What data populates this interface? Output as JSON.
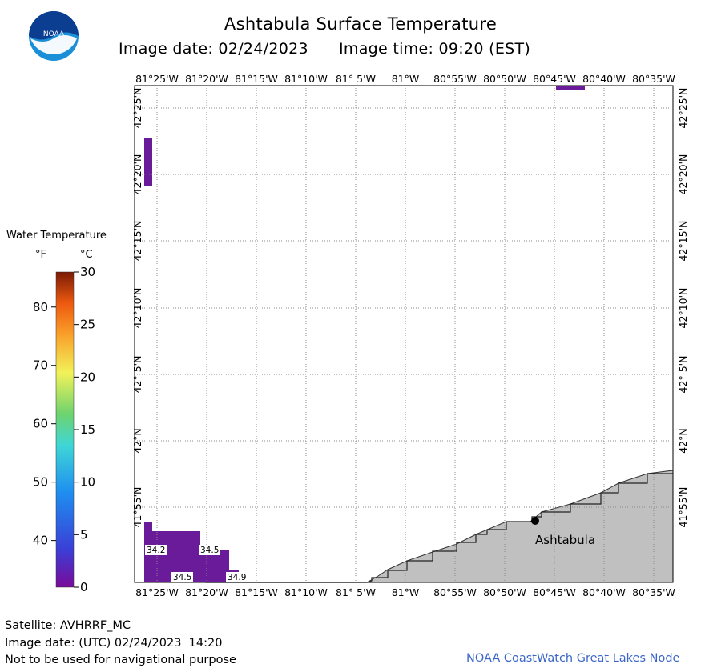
{
  "header": {
    "title": "Ashtabula Surface Temperature",
    "image_date": "Image date: 02/24/2023",
    "image_time": "Image time: 09:20 (EST)"
  },
  "logo": {
    "text": "NOAA"
  },
  "map": {
    "lon_labels": [
      "81°25'W",
      "81°20'W",
      "81°15'W",
      "81°10'W",
      "81° 5'W",
      "81°W",
      "80°55'W",
      "80°50'W",
      "80°45'W",
      "80°40'W",
      "80°35'W"
    ],
    "lat_labels": [
      "42°25'N",
      "42°20'N",
      "42°15'N",
      "42°10'N",
      "42° 5'N",
      "42°N",
      "41°55'N"
    ],
    "city": "Ashtabula",
    "sst_labels": [
      "34.2",
      "34.5",
      "34.5",
      "34.9"
    ],
    "colors": {
      "land": "#c0c0c0",
      "sst": "#6a1b9a",
      "grid": "#888888"
    }
  },
  "legend": {
    "title": "Water Temperature",
    "unit_f": "°F",
    "unit_c": "°C",
    "f_ticks": [
      "80",
      "70",
      "60",
      "50",
      "40"
    ],
    "c_ticks": [
      "30",
      "25",
      "20",
      "15",
      "10",
      "5",
      "0"
    ]
  },
  "footer": {
    "satellite": "Satellite: AVHRRF_MC",
    "utc_date": "Image date: (UTC) 02/24/2023  14:20",
    "disclaimer": "Not to be used for navigational purpose",
    "credit": "NOAA CoastWatch Great Lakes Node"
  }
}
